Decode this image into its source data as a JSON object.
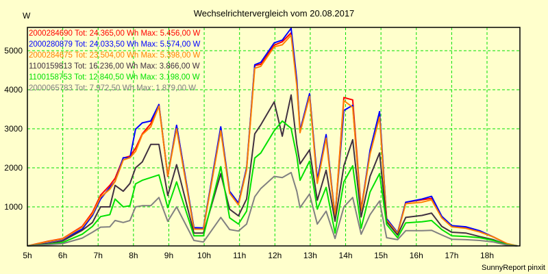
{
  "chart_data": {
    "type": "line",
    "title": "Wechselrichtervergleich vom 20.08.2017",
    "ylabel": "W",
    "xlabel": "",
    "credit": "SunnyReport pinxit",
    "xlim": [
      5,
      18.93
    ],
    "ylim": [
      0,
      5596
    ],
    "grid": true,
    "legend_placement": "top-left",
    "y_ticks": [
      1000,
      2000,
      3000,
      4000,
      5000
    ],
    "y_tick_labels": [
      "1000",
      "2000",
      "3000",
      "4000",
      "5000"
    ],
    "x_ticks": [
      5,
      6,
      7,
      8,
      9,
      10,
      11,
      12,
      13,
      14,
      15,
      16,
      17,
      18
    ],
    "x_tick_labels": [
      "5h",
      "6h",
      "7h",
      "8h",
      "9h",
      "10h",
      "11h",
      "12h",
      "13h",
      "14h",
      "15h",
      "16h",
      "17h",
      "18h"
    ],
    "x": [
      5,
      5.58,
      6,
      6.55,
      6.84,
      7.07,
      7.33,
      7.48,
      7.71,
      7.9,
      8.06,
      8.25,
      8.49,
      8.72,
      8.97,
      9.22,
      9.71,
      9.98,
      10.47,
      10.72,
      10.97,
      11.2,
      11.43,
      11.6,
      11.98,
      12.21,
      12.46,
      12.62,
      12.71,
      12.98,
      13.2,
      13.45,
      13.7,
      13.95,
      14.2,
      14.44,
      14.69,
      14.96,
      15.16,
      15.47,
      15.7,
      16.16,
      16.43,
      16.72,
      17.0,
      17.4,
      17.79,
      18.18,
      18.57,
      18.86
    ],
    "series": [
      {
        "name": "2000284690",
        "legend": "2000284690 Tot: 24.365,00 Wh Max: 5.456,00 W",
        "color": "#ff0000",
        "values": [
          0,
          120,
          190,
          500,
          860,
          1300,
          1550,
          1730,
          2250,
          2300,
          2500,
          2870,
          3130,
          3620,
          1780,
          3080,
          450,
          450,
          3010,
          1380,
          1080,
          1960,
          4620,
          4650,
          5140,
          5230,
          5456,
          4180,
          2950,
          3880,
          1640,
          2810,
          730,
          3800,
          3740,
          940,
          2400,
          3390,
          680,
          330,
          1120,
          1180,
          1220,
          730,
          510,
          470,
          370,
          230,
          50,
          0
        ]
      },
      {
        "name": "2000280879",
        "legend": "2000280879 Tot: 24.033,50 Wh Max: 5.574,00 W",
        "color": "#0000ff",
        "values": [
          0,
          100,
          170,
          430,
          780,
          1200,
          1500,
          1650,
          2260,
          2260,
          2990,
          3150,
          3200,
          3620,
          1800,
          3090,
          470,
          460,
          3050,
          1400,
          1100,
          2000,
          4640,
          4700,
          5200,
          5270,
          5574,
          4250,
          2950,
          3900,
          1700,
          2850,
          750,
          3470,
          3600,
          900,
          2450,
          3440,
          700,
          340,
          1120,
          1200,
          1270,
          760,
          520,
          490,
          390,
          230,
          50,
          0
        ]
      },
      {
        "name": "2000284675",
        "legend": "2000284675 Tot: 23.504,00 Wh Max: 5.398,00 W",
        "color": "#ff8000",
        "values": [
          0,
          110,
          180,
          480,
          820,
          1250,
          1450,
          1650,
          2200,
          2260,
          2420,
          2850,
          3050,
          3580,
          1800,
          3000,
          430,
          430,
          2950,
          1350,
          1050,
          1950,
          4550,
          4600,
          5100,
          5150,
          5398,
          4100,
          2900,
          3830,
          1600,
          2760,
          720,
          3720,
          3550,
          900,
          2350,
          3300,
          660,
          320,
          1080,
          1120,
          1180,
          720,
          490,
          450,
          360,
          230,
          60,
          0
        ]
      },
      {
        "name": "1100159813",
        "legend": "1100159813 Tot: 16.236,00 Wh Max: 3.866,00 W",
        "color": "#403040",
        "values": [
          0,
          60,
          130,
          400,
          600,
          1000,
          1000,
          1550,
          1400,
          1600,
          2000,
          2150,
          2600,
          2600,
          1290,
          2080,
          330,
          330,
          1850,
          940,
          770,
          1200,
          2870,
          3100,
          3690,
          2810,
          3866,
          2600,
          2100,
          2460,
          1170,
          1940,
          630,
          2050,
          2720,
          740,
          1780,
          2380,
          620,
          280,
          730,
          780,
          840,
          500,
          350,
          330,
          240,
          160,
          30,
          0
        ]
      },
      {
        "name": "1100158753",
        "legend": "1100158753 Tot: 12.840,50 Wh Max: 3.198,00 W",
        "color": "#00e000",
        "values": [
          0,
          40,
          90,
          300,
          500,
          750,
          800,
          1200,
          1000,
          1030,
          1590,
          1680,
          1750,
          1820,
          980,
          1640,
          260,
          260,
          2030,
          720,
          560,
          890,
          2250,
          2380,
          2950,
          3198,
          3010,
          2300,
          1680,
          2170,
          940,
          1500,
          330,
          1640,
          2050,
          450,
          1380,
          1850,
          550,
          210,
          590,
          620,
          650,
          420,
          260,
          240,
          210,
          140,
          30,
          0
        ]
      },
      {
        "name": "2000065783",
        "legend": "2000065783 Tot: 7.972,50 Wh Max: 1.879,00 W",
        "color": "#808080",
        "values": [
          0,
          30,
          60,
          200,
          350,
          480,
          490,
          650,
          600,
          650,
          1000,
          1030,
          1030,
          1240,
          630,
          1000,
          140,
          100,
          730,
          420,
          380,
          560,
          1260,
          1470,
          1780,
          1750,
          1879,
          1400,
          980,
          1330,
          560,
          890,
          190,
          1000,
          1240,
          300,
          800,
          1150,
          210,
          160,
          390,
          390,
          400,
          280,
          170,
          160,
          140,
          100,
          20,
          0
        ]
      }
    ]
  },
  "colors": {
    "background": "#ffffcc",
    "grid": "#00e000",
    "axis": "#000000"
  }
}
